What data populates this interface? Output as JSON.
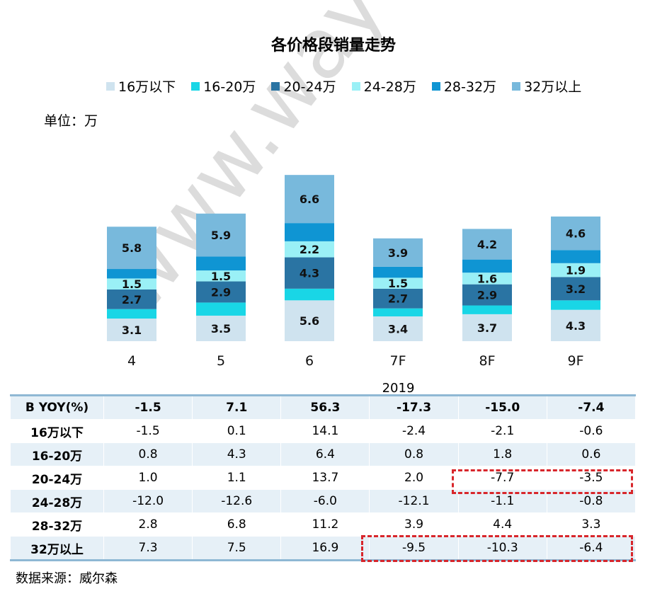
{
  "title": "各价格段销量走势",
  "unit_label": "单位：万",
  "year_label": "2019",
  "source": "数据来源：威尔森",
  "watermark": "www.way-s.cn",
  "chart_data": {
    "type": "bar",
    "stacked": true,
    "title": "各价格段销量走势",
    "categories": [
      "4",
      "5",
      "6",
      "7F",
      "8F",
      "9F"
    ],
    "series": [
      {
        "name": "16万以下",
        "color": "#cfe3ef",
        "values": [
          3.1,
          3.5,
          5.6,
          3.4,
          3.7,
          4.3
        ],
        "labeled": true
      },
      {
        "name": "16-20万",
        "color": "#19d6e6",
        "values": [
          1.3,
          1.8,
          1.6,
          1.1,
          1.2,
          1.3
        ],
        "labeled": false
      },
      {
        "name": "20-24万",
        "color": "#2a74a3",
        "values": [
          2.7,
          2.9,
          4.3,
          2.7,
          2.9,
          3.2
        ],
        "labeled": true
      },
      {
        "name": "24-28万",
        "color": "#9af0f6",
        "values": [
          1.5,
          1.5,
          2.2,
          1.5,
          1.6,
          1.9
        ],
        "labeled": true
      },
      {
        "name": "28-32万",
        "color": "#0f95d3",
        "values": [
          1.3,
          1.9,
          2.5,
          1.5,
          1.8,
          1.8
        ],
        "labeled": false
      },
      {
        "name": "32万以上",
        "color": "#78b9dc",
        "values": [
          5.8,
          5.9,
          6.6,
          3.9,
          4.2,
          4.6
        ],
        "labeled": true
      }
    ],
    "legend_position": "top",
    "grid": false
  },
  "table": {
    "rows": [
      {
        "label": "B YOY(%)",
        "values": [
          "-1.5",
          "7.1",
          "56.3",
          "-17.3",
          "-15.0",
          "-7.4"
        ]
      },
      {
        "label": "16万以下",
        "values": [
          "-1.5",
          "0.1",
          "14.1",
          "-2.4",
          "-2.1",
          "-0.6"
        ]
      },
      {
        "label": "16-20万",
        "values": [
          "0.8",
          "4.3",
          "6.4",
          "0.8",
          "1.8",
          "0.6"
        ]
      },
      {
        "label": "20-24万",
        "values": [
          "1.0",
          "1.1",
          "13.7",
          "2.0",
          "-7.7",
          "-3.5"
        ]
      },
      {
        "label": "24-28万",
        "values": [
          "-12.0",
          "-12.6",
          "-6.0",
          "-12.1",
          "-1.1",
          "-0.8"
        ]
      },
      {
        "label": "28-32万",
        "values": [
          "2.8",
          "6.8",
          "11.2",
          "3.9",
          "4.4",
          "3.3"
        ]
      },
      {
        "label": "32万以上",
        "values": [
          "7.3",
          "7.5",
          "16.9",
          "-9.5",
          "-10.3",
          "-6.4"
        ]
      }
    ]
  }
}
